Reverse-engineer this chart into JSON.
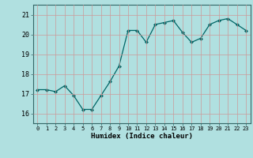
{
  "x": [
    0,
    1,
    2,
    3,
    4,
    5,
    6,
    7,
    8,
    9,
    10,
    11,
    12,
    13,
    14,
    15,
    16,
    17,
    18,
    19,
    20,
    21,
    22,
    23
  ],
  "y": [
    17.2,
    17.2,
    17.1,
    17.4,
    16.9,
    16.2,
    16.2,
    16.9,
    17.6,
    18.4,
    20.2,
    20.2,
    19.6,
    20.5,
    20.6,
    20.7,
    20.1,
    19.6,
    19.8,
    20.5,
    20.7,
    20.8,
    20.5,
    20.2
  ],
  "xlabel": "Humidex (Indice chaleur)",
  "ylim": [
    15.5,
    21.5
  ],
  "xlim": [
    -0.5,
    23.5
  ],
  "yticks": [
    16,
    17,
    18,
    19,
    20,
    21
  ],
  "xticks": [
    0,
    1,
    2,
    3,
    4,
    5,
    6,
    7,
    8,
    9,
    10,
    11,
    12,
    13,
    14,
    15,
    16,
    17,
    18,
    19,
    20,
    21,
    22,
    23
  ],
  "line_color": "#006666",
  "marker_color": "#006666",
  "bg_color": "#b0e0e0",
  "grid_color": "#cc9999",
  "plot_bg": "#b0e0e0",
  "fig_bg": "#b0e0e0"
}
